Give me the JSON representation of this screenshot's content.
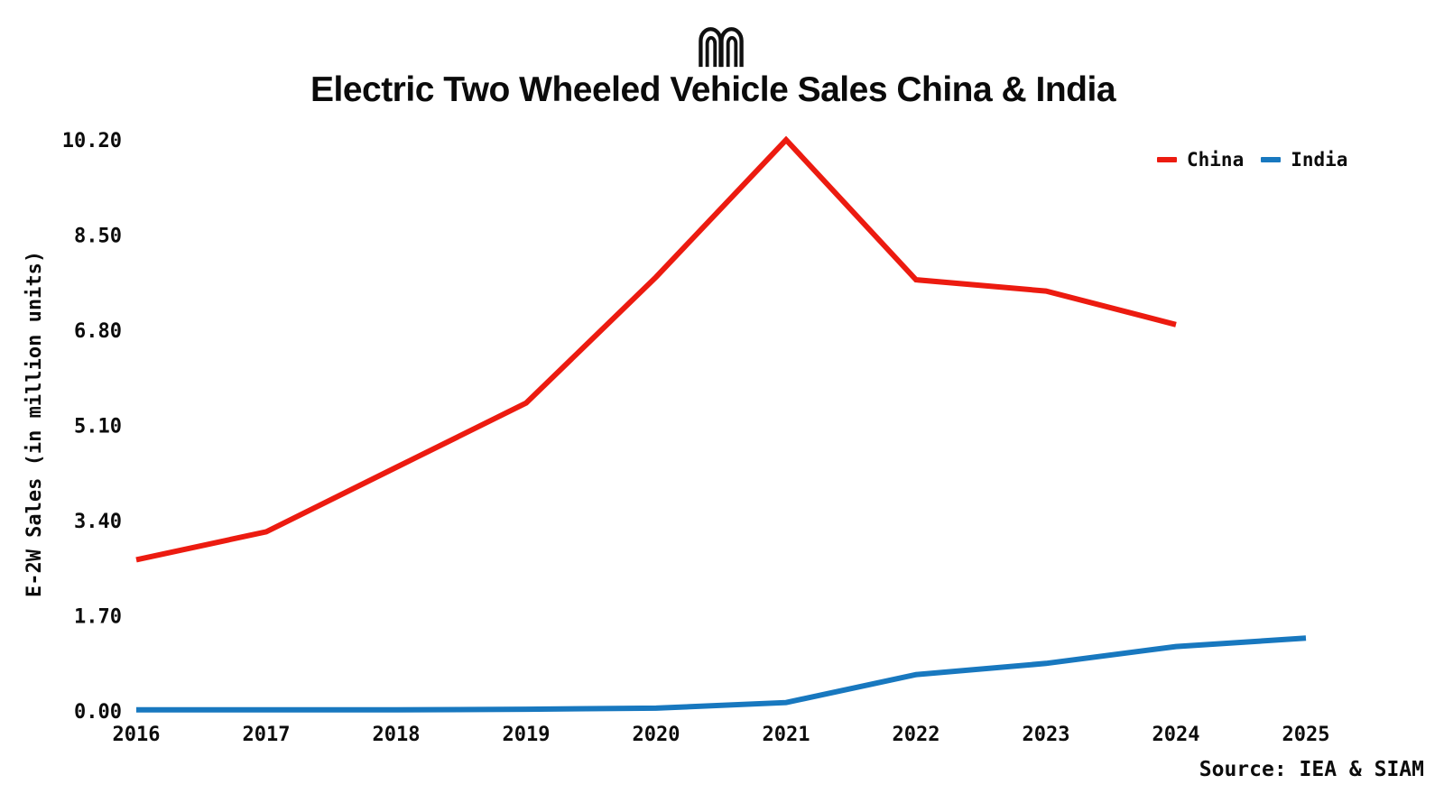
{
  "page": {
    "title": "Electric Two Wheeled Vehicle Sales China & India"
  },
  "legend": {
    "items": [
      "China",
      "India"
    ]
  },
  "source": {
    "text": "Source: IEA & SIAM"
  },
  "chart_data": {
    "type": "line",
    "title": "Electric Two Wheeled Vehicle Sales China & India",
    "categories": [
      "2016",
      "2017",
      "2018",
      "2019",
      "2020",
      "2021",
      "2022",
      "2023",
      "2024",
      "2025"
    ],
    "series": [
      {
        "name": "China",
        "color": "#ec1b10",
        "values": [
          2.7,
          3.2,
          4.35,
          5.5,
          7.75,
          10.2,
          7.7,
          7.5,
          6.9,
          null
        ]
      },
      {
        "name": "India",
        "color": "#1878bf",
        "values": [
          0.02,
          0.02,
          0.02,
          0.03,
          0.05,
          0.15,
          0.65,
          0.85,
          1.15,
          1.3
        ]
      }
    ],
    "xlabel": "",
    "ylabel": "E-2W Sales (in million units)",
    "yticks": [
      0,
      1.7,
      3.4,
      5.1,
      6.8,
      8.5,
      10.2
    ],
    "ytick_labels": [
      "0.00",
      "1.70",
      "3.40",
      "5.10",
      "6.80",
      "8.50",
      "10.20"
    ],
    "ylim": [
      0,
      10.2
    ],
    "grid": false,
    "axis_lines": false,
    "legend_position": "top-right",
    "source": "Source: IEA & SIAM",
    "units": "million units"
  }
}
